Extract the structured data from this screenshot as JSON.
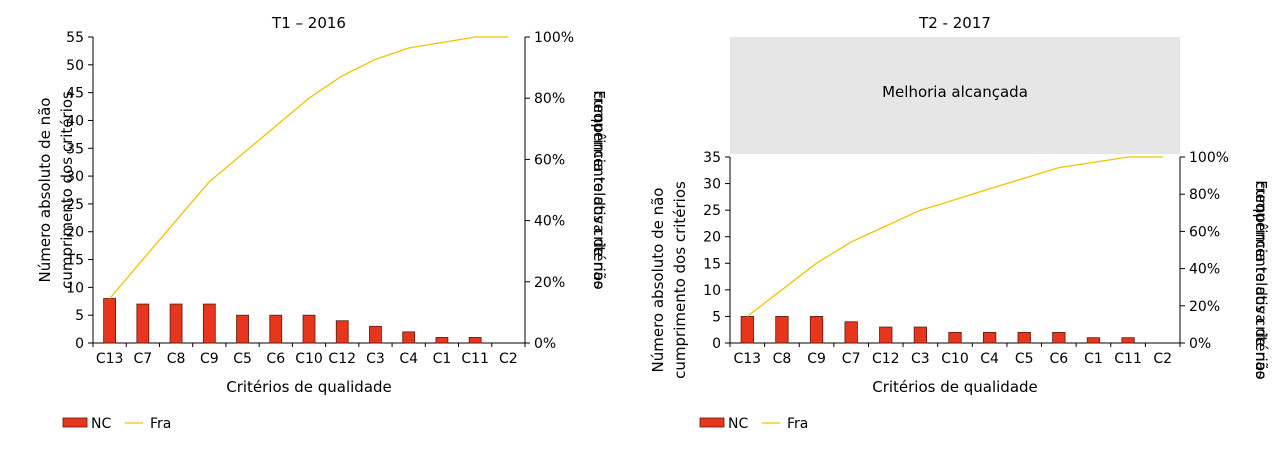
{
  "chart_data": [
    {
      "type": "bar",
      "title": "T1 – 2016",
      "xlabel": "Critérios de qualidade",
      "ylabel_left": "Número absoluto de não cumprimento dos critérios",
      "ylabel_right": "Frequência relativa de não cumprimento dos critérios",
      "ylim_left": [
        0,
        55
      ],
      "yticks_left": [
        0,
        5,
        10,
        15,
        20,
        25,
        30,
        35,
        40,
        45,
        50,
        55
      ],
      "ylim_right": [
        0,
        100
      ],
      "yticks_right": [
        "0%",
        "20%",
        "40%",
        "60%",
        "80%",
        "100%"
      ],
      "categories": [
        "C13",
        "C7",
        "C8",
        "C9",
        "C5",
        "C6",
        "C10",
        "C12",
        "C3",
        "C4",
        "C1",
        "C11",
        "C2"
      ],
      "series": [
        {
          "name": "NC",
          "type": "bar",
          "axis": "left",
          "color": "#e8351e",
          "values": [
            8,
            7,
            7,
            7,
            5,
            5,
            5,
            4,
            3,
            2,
            1,
            1,
            0
          ]
        },
        {
          "name": "Fra",
          "type": "line",
          "axis": "right",
          "color": "#f2c200",
          "values": [
            14.5,
            27.3,
            40.0,
            52.7,
            61.8,
            70.9,
            80.0,
            87.3,
            92.7,
            96.4,
            98.2,
            100,
            100
          ]
        }
      ],
      "legend": "bottom-left"
    },
    {
      "type": "bar",
      "title": "T2 - 2017",
      "annotation": "Melhoria alcançada",
      "xlabel": "Critérios de qualidade",
      "ylabel_left": "Número absoluto de não cumprimento dos critérios",
      "ylabel_right": "Frequência relativa de não cumprimento dos critérios",
      "ylim_left": [
        0,
        35
      ],
      "yticks_left": [
        0,
        5,
        10,
        15,
        20,
        25,
        30,
        35
      ],
      "ylim_right": [
        0,
        100
      ],
      "yticks_right": [
        "0%",
        "20%",
        "40%",
        "60%",
        "80%",
        "100%"
      ],
      "categories": [
        "C13",
        "C8",
        "C9",
        "C7",
        "C12",
        "C3",
        "C10",
        "C4",
        "C5",
        "C6",
        "C1",
        "C11",
        "C2"
      ],
      "series": [
        {
          "name": "NC",
          "type": "bar",
          "axis": "left",
          "color": "#e8351e",
          "values": [
            5,
            5,
            5,
            4,
            3,
            3,
            2,
            2,
            2,
            2,
            1,
            1,
            0
          ]
        },
        {
          "name": "Fra",
          "type": "line",
          "axis": "right",
          "color": "#f2c200",
          "values": [
            14.3,
            28.6,
            42.9,
            54.3,
            62.9,
            71.4,
            77.1,
            82.9,
            88.6,
            94.3,
            97.1,
            100,
            100
          ]
        }
      ],
      "legend": "bottom-left"
    }
  ]
}
